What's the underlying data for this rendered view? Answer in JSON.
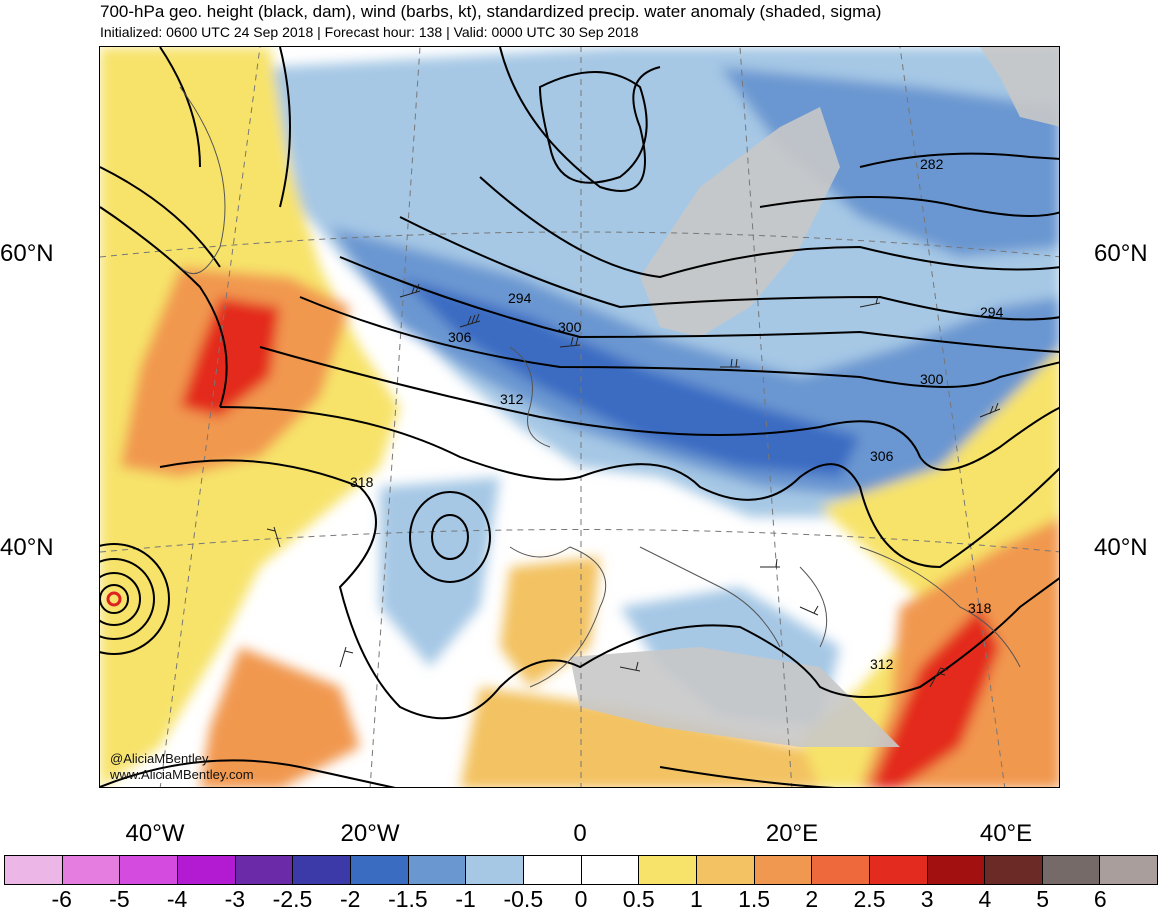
{
  "header": {
    "title": "700-hPa geo. height (black, dam), wind (barbs, kt), standardized precip. water anomaly (shaded, sigma)",
    "subtitle": "Initialized: 0600 UTC 24 Sep 2018 | Forecast hour: 138 | Valid: 0000 UTC 30 Sep 2018"
  },
  "map": {
    "lat_labels": [
      "60°N",
      "40°N"
    ],
    "lon_labels": [
      "40°W",
      "20°W",
      "0",
      "20°E",
      "40°E"
    ],
    "contour_labels": [
      "282",
      "294",
      "294",
      "300",
      "300",
      "306",
      "306",
      "312",
      "312",
      "318",
      "318"
    ],
    "credit": [
      "@AliciaMBentley",
      "www.AliciaMBentley.com"
    ],
    "land_color": "#c8c8c8",
    "contour_color": "#000000"
  },
  "colorbar": {
    "colors": [
      "#ecb6e6",
      "#e57de0",
      "#d44be0",
      "#b21bd1",
      "#6b2aa8",
      "#3c3aa8",
      "#3a6cc2",
      "#6b97d1",
      "#a6c8e5",
      "#ffffff",
      "#ffffff",
      "#f7e36a",
      "#f3c262",
      "#f19850",
      "#ee6a3c",
      "#e32b1f",
      "#a31010",
      "#6b2a26",
      "#766a69",
      "#aa9e9d"
    ],
    "ticks": [
      "-6",
      "-5",
      "-4",
      "-3",
      "-2.5",
      "-2",
      "-1.5",
      "-1",
      "-0.5",
      "0",
      "0.5",
      "1",
      "1.5",
      "2",
      "2.5",
      "3",
      "4",
      "5",
      "6"
    ]
  }
}
